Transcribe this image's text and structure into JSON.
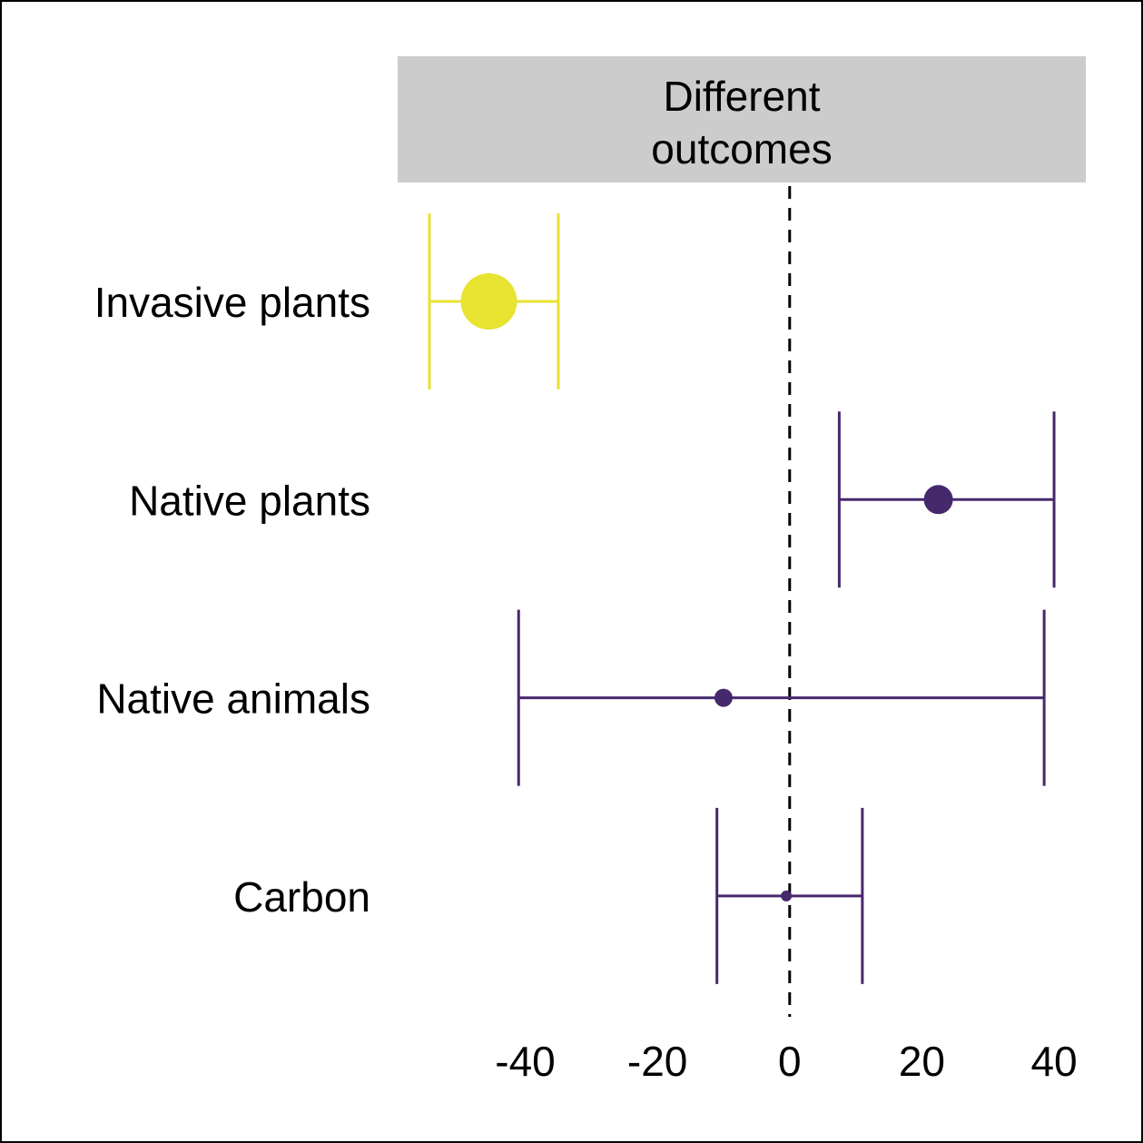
{
  "chart_data": {
    "type": "forest",
    "facet_label_lines": [
      "Different",
      "outcomes"
    ],
    "categories": [
      "Invasive plants",
      "Native plants",
      "Native animals",
      "Carbon"
    ],
    "estimates": [
      -45.5,
      22.5,
      -10,
      -0.5
    ],
    "ci_low": [
      -54.5,
      7.5,
      -41,
      -11
    ],
    "ci_high": [
      -35,
      40,
      38.5,
      11
    ],
    "point_size": [
      31,
      16,
      10,
      6
    ],
    "colors": [
      "#e8e231",
      "#46296d",
      "#46296d",
      "#46296d"
    ],
    "x_ticks": [
      -40,
      -20,
      0,
      20,
      40
    ],
    "x_tick_labels": [
      "-40",
      "-20",
      "0",
      "20",
      "40"
    ],
    "xlim": [
      -59.3,
      44.8
    ],
    "reference_line": 0,
    "facet_color": "#cccccc"
  }
}
